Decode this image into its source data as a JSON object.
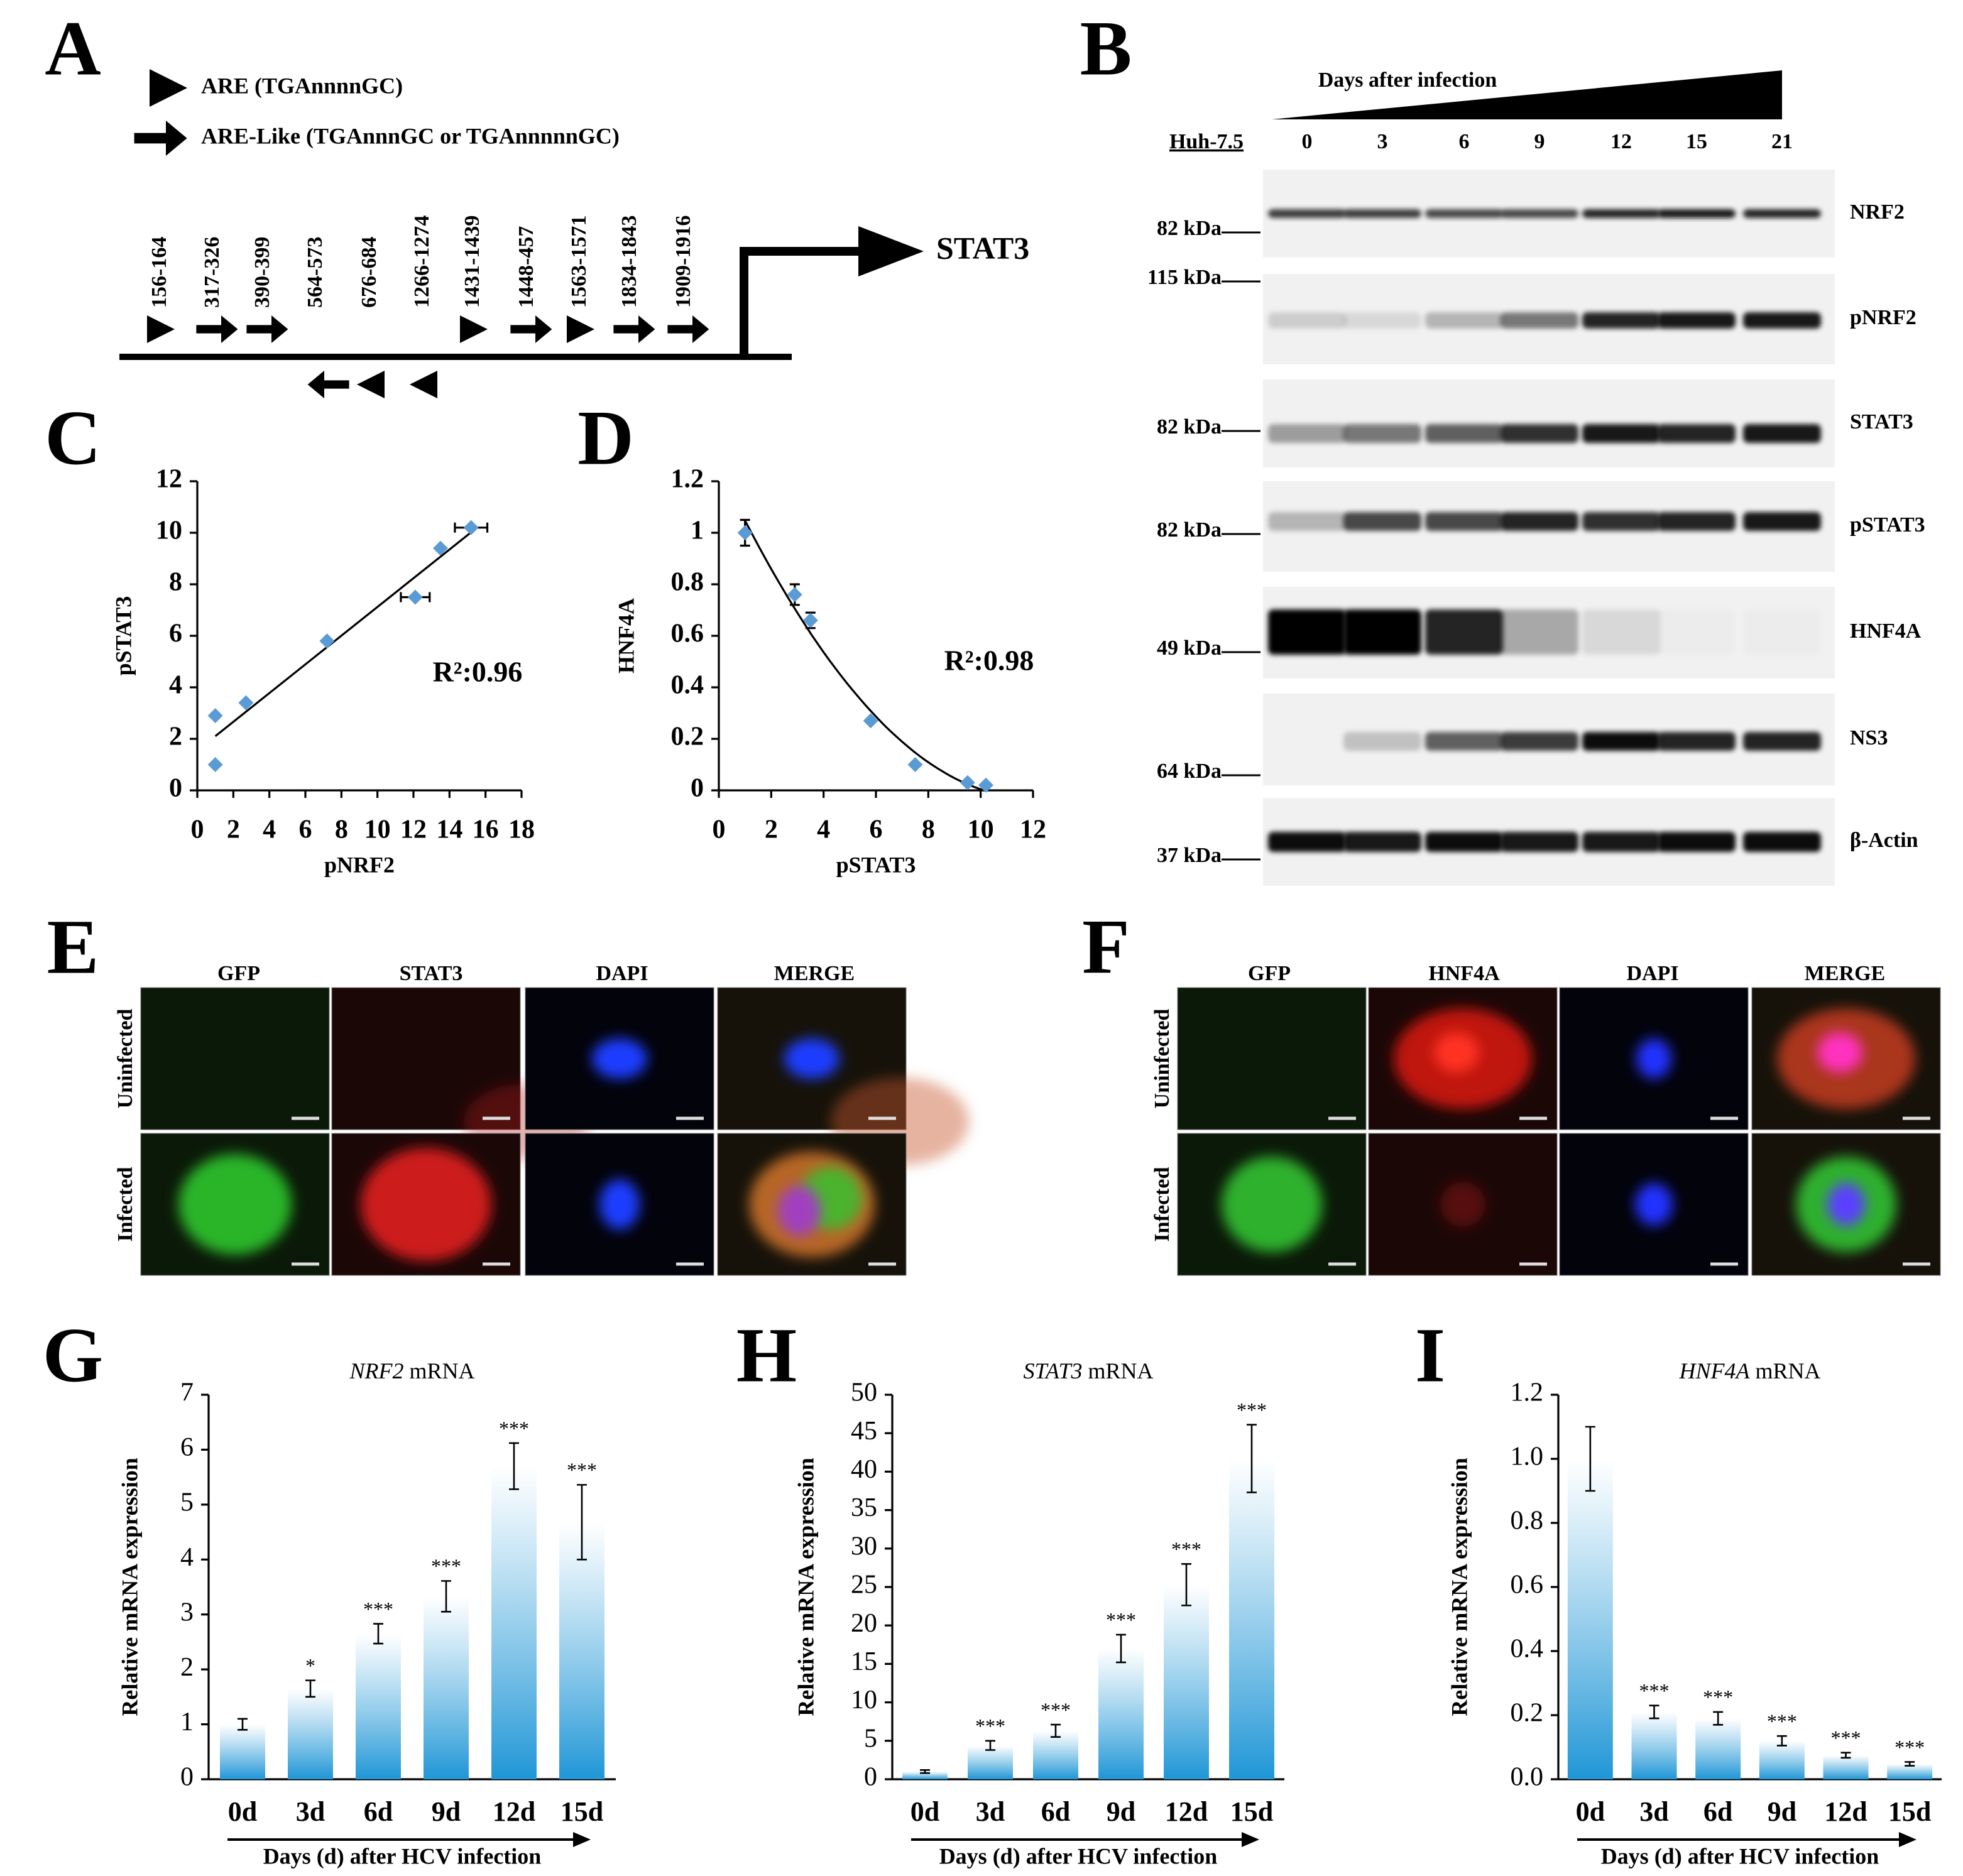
{
  "panel_labels": [
    "A",
    "B",
    "C",
    "D",
    "E",
    "F",
    "G",
    "H",
    "I"
  ],
  "promoter": {
    "legend": [
      {
        "label": "ARE (TGAnnnnGC)",
        "marker": "triangle"
      },
      {
        "label": "ARE-Like (TGAnnnGC or TGAnnnnnGC)",
        "marker": "arrow"
      }
    ],
    "gene": "STAT3",
    "sites": [
      {
        "label": "156-164",
        "marker": "triangle",
        "direction": "right"
      },
      {
        "label": "317-326",
        "marker": "arrow",
        "direction": "right"
      },
      {
        "label": "390-399",
        "marker": "arrow",
        "direction": "right"
      },
      {
        "label": "564-573",
        "marker": "arrow",
        "direction": "left"
      },
      {
        "label": "676-684",
        "marker": "triangle",
        "direction": "left"
      },
      {
        "label": "1266-1274",
        "marker": "triangle",
        "direction": "left"
      },
      {
        "label": "1431-1439",
        "marker": "triangle",
        "direction": "right"
      },
      {
        "label": "1448-457",
        "marker": "arrow",
        "direction": "right"
      },
      {
        "label": "1563-1571",
        "marker": "triangle",
        "direction": "right"
      },
      {
        "label": "1834-1843",
        "marker": "arrow",
        "direction": "right"
      },
      {
        "label": "1909-1916",
        "marker": "arrow",
        "direction": "right"
      }
    ]
  },
  "western_blot": {
    "title": "Days after infection",
    "cell_line": "Huh-7.5",
    "days": [
      0,
      3,
      6,
      9,
      12,
      15,
      21
    ],
    "rows": [
      {
        "name": "NRF2",
        "markers": [
          "82 kDa"
        ]
      },
      {
        "name": "pNRF2",
        "markers": [
          "115 kDa"
        ]
      },
      {
        "name": "STAT3",
        "markers": [
          "82 kDa"
        ]
      },
      {
        "name": "pSTAT3",
        "markers": [
          "82 kDa"
        ]
      },
      {
        "name": "HNF4A",
        "markers": [
          "49 kDa"
        ]
      },
      {
        "name": "NS3",
        "markers": [
          "64 kDa"
        ]
      },
      {
        "name": "β-Actin",
        "markers": [
          "37 kDa"
        ]
      }
    ]
  },
  "microscopy": [
    {
      "columns": [
        "GFP",
        "STAT3",
        "DAPI",
        "MERGE"
      ],
      "rows": [
        "Uninfected",
        "Infected"
      ]
    },
    {
      "columns": [
        "GFP",
        "HNF4A",
        "DAPI",
        "MERGE"
      ],
      "rows": [
        "Uninfected",
        "Infected"
      ]
    }
  ],
  "chart_data": [
    {
      "type": "scatter",
      "x_label": "pNRF2",
      "y_label": "pSTAT3",
      "annotation": "R²:0.96",
      "color": "#5b9bd5",
      "trendline": "linear",
      "x": [
        1,
        1,
        2.7,
        7.2,
        12.1,
        13.5,
        15.2
      ],
      "values": [
        1,
        2.9,
        3.4,
        5.8,
        7.5,
        9.4,
        10.2
      ],
      "xerr": [
        null,
        null,
        null,
        null,
        0.8,
        null,
        0.9
      ],
      "yerr": [
        null,
        null,
        null,
        null,
        null,
        null,
        null
      ],
      "xlim": [
        0,
        18
      ],
      "xticks": [
        0,
        2,
        4,
        6,
        8,
        10,
        12,
        14,
        16,
        18
      ],
      "ylim": [
        0,
        12
      ],
      "yticks": [
        0,
        2,
        4,
        6,
        8,
        10,
        12
      ]
    },
    {
      "type": "scatter",
      "x_label": "pSTAT3",
      "y_label": "HNF4A",
      "annotation": "R²:0.98",
      "color": "#5b9bd5",
      "trendline": "poly2",
      "x": [
        1,
        2.9,
        3.5,
        5.8,
        7.5,
        9.5,
        10.2
      ],
      "values": [
        1,
        0.76,
        0.66,
        0.27,
        0.1,
        0.03,
        0.02
      ],
      "xerr": [
        null,
        null,
        null,
        null,
        null,
        null,
        null
      ],
      "yerr": [
        0.05,
        0.04,
        0.03,
        null,
        null,
        null,
        null
      ],
      "xlim": [
        0,
        12
      ],
      "xticks": [
        0,
        2,
        4,
        6,
        8,
        10,
        12
      ],
      "ylim": [
        0,
        1.2
      ],
      "yticks": [
        0,
        0.2,
        0.4,
        0.6,
        0.8,
        1,
        1.2
      ]
    },
    {
      "type": "bar",
      "title": {
        "gene": "NRF2",
        "text": " mRNA"
      },
      "y_label": "Relative mRNA expression",
      "x_label": "Days (d) after HCV infection",
      "color": "#1f96d6",
      "categories": [
        "0d",
        "3d",
        "6d",
        "9d",
        "12d",
        "15d"
      ],
      "values": [
        1,
        1.65,
        2.65,
        3.33,
        5.7,
        4.68
      ],
      "errors": [
        0.1,
        0.15,
        0.18,
        0.28,
        0.42,
        0.68
      ],
      "significance": [
        null,
        "*",
        "***",
        "***",
        "***",
        "***"
      ],
      "ylim": [
        0,
        7
      ],
      "yticks": [
        0,
        1,
        2,
        3,
        4,
        5,
        6,
        7
      ]
    },
    {
      "type": "bar",
      "title": {
        "gene": "STAT3",
        "text": " mRNA"
      },
      "y_label": "Relative mRNA expression",
      "x_label": "Days (d) after HCV infection",
      "color": "#1f96d6",
      "categories": [
        "0d",
        "3d",
        "6d",
        "9d",
        "12d",
        "15d"
      ],
      "values": [
        1,
        4.4,
        6.3,
        17,
        25.3,
        41.7
      ],
      "errors": [
        0.2,
        0.6,
        0.8,
        1.8,
        2.7,
        4.4
      ],
      "significance": [
        null,
        "***",
        "***",
        "***",
        "***",
        "***"
      ],
      "ylim": [
        0,
        50
      ],
      "yticks": [
        0,
        5,
        10,
        15,
        20,
        25,
        30,
        35,
        40,
        45,
        50
      ]
    },
    {
      "type": "bar",
      "title": {
        "gene": "HNF4A",
        "text": " mRNA"
      },
      "y_label": "Relative mRNA expression",
      "x_label": "Days (d) after HCV infection",
      "color": "#1f96d6",
      "categories": [
        "0d",
        "3d",
        "6d",
        "9d",
        "12d",
        "15d"
      ],
      "values": [
        1,
        0.21,
        0.19,
        0.12,
        0.075,
        0.048
      ],
      "errors": [
        0.1,
        0.02,
        0.02,
        0.015,
        0.008,
        0.006
      ],
      "significance": [
        null,
        "***",
        "***",
        "***",
        "***",
        "***"
      ],
      "ylim": [
        0,
        1.2
      ],
      "yticks": [
        {
          "value": 0,
          "label": "0.0"
        },
        0.2,
        0.4,
        0.6,
        0.8,
        {
          "value": 1,
          "label": "1.0"
        },
        1.2
      ]
    }
  ]
}
